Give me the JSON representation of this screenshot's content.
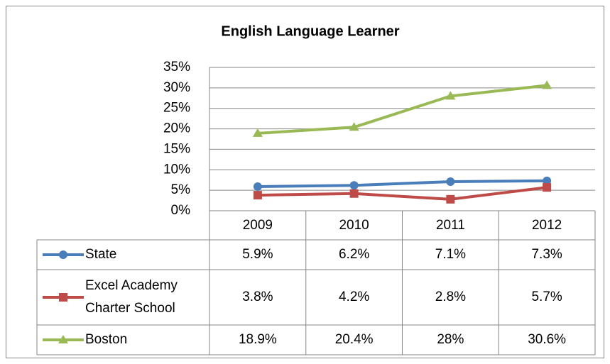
{
  "chart_data": {
    "type": "line",
    "title": "English Language Learner",
    "categories": [
      "2009",
      "2010",
      "2011",
      "2012"
    ],
    "series": [
      {
        "name": "State",
        "color": "#4a7ebb",
        "marker": "circle",
        "values": [
          5.9,
          6.2,
          7.1,
          7.3
        ],
        "value_labels": [
          "5.9%",
          "6.2%",
          "7.1%",
          "7.3%"
        ]
      },
      {
        "name": "Excel Academy Charter School",
        "color": "#be4b48",
        "marker": "square",
        "values": [
          3.8,
          4.2,
          2.8,
          5.7
        ],
        "value_labels": [
          "3.8%",
          "4.2%",
          "2.8%",
          "5.7%"
        ]
      },
      {
        "name": "Boston",
        "color": "#98b954",
        "marker": "triangle",
        "values": [
          18.9,
          20.4,
          28,
          30.6
        ],
        "value_labels": [
          "18.9%",
          "20.4%",
          "28%",
          "30.6%"
        ]
      }
    ],
    "ylim": [
      0,
      35
    ],
    "yticks": [
      {
        "value": 0,
        "label": "0%"
      },
      {
        "value": 5,
        "label": "5%"
      },
      {
        "value": 10,
        "label": "10%"
      },
      {
        "value": 15,
        "label": "15%"
      },
      {
        "value": 20,
        "label": "20%"
      },
      {
        "value": 25,
        "label": "25%"
      },
      {
        "value": 30,
        "label": "30%"
      },
      {
        "value": 35,
        "label": "35%"
      }
    ],
    "grid": true,
    "data_table": true
  }
}
